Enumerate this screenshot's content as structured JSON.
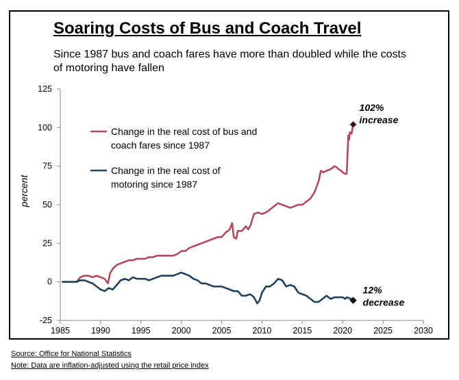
{
  "chart_data": {
    "type": "line",
    "title": "Soaring Costs of Bus and Coach Travel",
    "subtitle": "Since 1987 bus and coach fares have more than doubled while the costs of motoring have fallen",
    "xlabel": "",
    "ylabel": "percent",
    "xlim": [
      1985,
      2030
    ],
    "ylim": [
      -25,
      125
    ],
    "x_ticks": [
      1985,
      1990,
      1995,
      2000,
      2005,
      2010,
      2015,
      2020,
      2025,
      2030
    ],
    "y_ticks": [
      125,
      100,
      75,
      50,
      25,
      0,
      -25
    ],
    "grid": false,
    "legend_position": "left-upper",
    "series": [
      {
        "name": "Change in the real cost of bus and coach fares since 1987",
        "legend_lines": [
          "Change in the real cost of bus and",
          "coach fares since 1987"
        ],
        "color": "#b5475a",
        "x": [
          1985.2,
          1987.0,
          1987.5,
          1988.0,
          1988.5,
          1989.0,
          1989.5,
          1990.0,
          1990.5,
          1990.9,
          1991.2,
          1991.6,
          1992.0,
          1992.5,
          1993.0,
          1993.5,
          1994.0,
          1994.5,
          1995.0,
          1995.5,
          1996.0,
          1996.5,
          1997.0,
          1997.5,
          1998.0,
          1998.5,
          1999.0,
          1999.5,
          2000.0,
          2000.5,
          2001.0,
          2001.5,
          2002.0,
          2002.5,
          2003.0,
          2003.5,
          2004.0,
          2004.5,
          2005.0,
          2005.5,
          2006.0,
          2006.3,
          2006.5,
          2006.8,
          2007.0,
          2007.5,
          2008.0,
          2008.3,
          2008.6,
          2009.0,
          2009.5,
          2010.0,
          2010.5,
          2011.0,
          2011.5,
          2012.0,
          2012.5,
          2013.0,
          2013.5,
          2014.0,
          2014.5,
          2015.0,
          2015.5,
          2016.0,
          2016.5,
          2017.0,
          2017.3,
          2017.6,
          2018.0,
          2018.5,
          2019.0,
          2019.3,
          2019.5,
          2019.8,
          2020.0,
          2020.3,
          2020.5,
          2020.7,
          2020.8,
          2020.9,
          2021.1,
          2021.3
        ],
        "values": [
          0,
          0,
          3,
          4,
          4,
          3,
          4,
          3,
          2,
          -1,
          6,
          9,
          11,
          12,
          13,
          14,
          14,
          15,
          15,
          15,
          16,
          16,
          17,
          17,
          17,
          17,
          17,
          18,
          20,
          20,
          22,
          23,
          24,
          25,
          26,
          27,
          28,
          29,
          29,
          32,
          34,
          38,
          29,
          28,
          33,
          33,
          36,
          34,
          37,
          44,
          45,
          44,
          45,
          47,
          49,
          51,
          50,
          49,
          48,
          49,
          50,
          50,
          52,
          54,
          58,
          65,
          72,
          71,
          72,
          73,
          75,
          74,
          73,
          72,
          71,
          70,
          70,
          95,
          92,
          97,
          96,
          102
        ]
      },
      {
        "name": "Change in the real cost of motoring since 1987",
        "legend_lines": [
          "Change in the real cost of",
          "motoring since 1987"
        ],
        "color": "#1f3f5c",
        "x": [
          1985.2,
          1987.0,
          1987.5,
          1988.0,
          1988.5,
          1989.0,
          1989.5,
          1990.0,
          1990.5,
          1991.0,
          1991.5,
          1992.0,
          1992.5,
          1993.0,
          1993.5,
          1994.0,
          1994.5,
          1995.0,
          1995.5,
          1996.0,
          1996.5,
          1997.0,
          1997.5,
          1998.0,
          1998.5,
          1999.0,
          1999.5,
          2000.0,
          2000.5,
          2001.0,
          2001.5,
          2002.0,
          2002.5,
          2003.0,
          2003.5,
          2004.0,
          2004.5,
          2005.0,
          2005.5,
          2006.0,
          2006.5,
          2007.0,
          2007.5,
          2008.0,
          2008.5,
          2008.8,
          2009.0,
          2009.4,
          2009.7,
          2010.0,
          2010.5,
          2011.0,
          2011.5,
          2012.0,
          2012.5,
          2013.0,
          2013.5,
          2014.0,
          2014.5,
          2015.0,
          2015.5,
          2016.0,
          2016.5,
          2017.0,
          2017.5,
          2018.0,
          2018.5,
          2019.0,
          2019.5,
          2020.0,
          2020.3,
          2020.5,
          2021.0,
          2021.3
        ],
        "values": [
          0,
          0,
          1,
          1,
          0,
          -1,
          -3,
          -5,
          -6,
          -4,
          -5,
          -2,
          1,
          2,
          1,
          3,
          2,
          2,
          2,
          1,
          2,
          3,
          4,
          4,
          4,
          4,
          5,
          6,
          5,
          4,
          2,
          1,
          -1,
          -1,
          -2,
          -3,
          -3,
          -3,
          -4,
          -5,
          -6,
          -6,
          -9,
          -9,
          -8,
          -9,
          -10,
          -14,
          -12,
          -7,
          -3,
          -3,
          -1,
          2,
          1,
          -3,
          -2,
          -3,
          -7,
          -8,
          -9,
          -11,
          -13,
          -13,
          -11,
          -9,
          -11,
          -10,
          -10,
          -10,
          -11,
          -10,
          -11,
          -12
        ]
      }
    ],
    "annotations": [
      {
        "lines": [
          "102%",
          "increase"
        ],
        "x": 2021.3,
        "y": 102
      },
      {
        "lines": [
          "12%",
          "decrease"
        ],
        "x": 2021.3,
        "y": -12
      }
    ]
  },
  "footnotes": {
    "source": "Source: Office for National Statistics",
    "note": "Note:  Data are inflation-adjusted using the retail price index"
  }
}
